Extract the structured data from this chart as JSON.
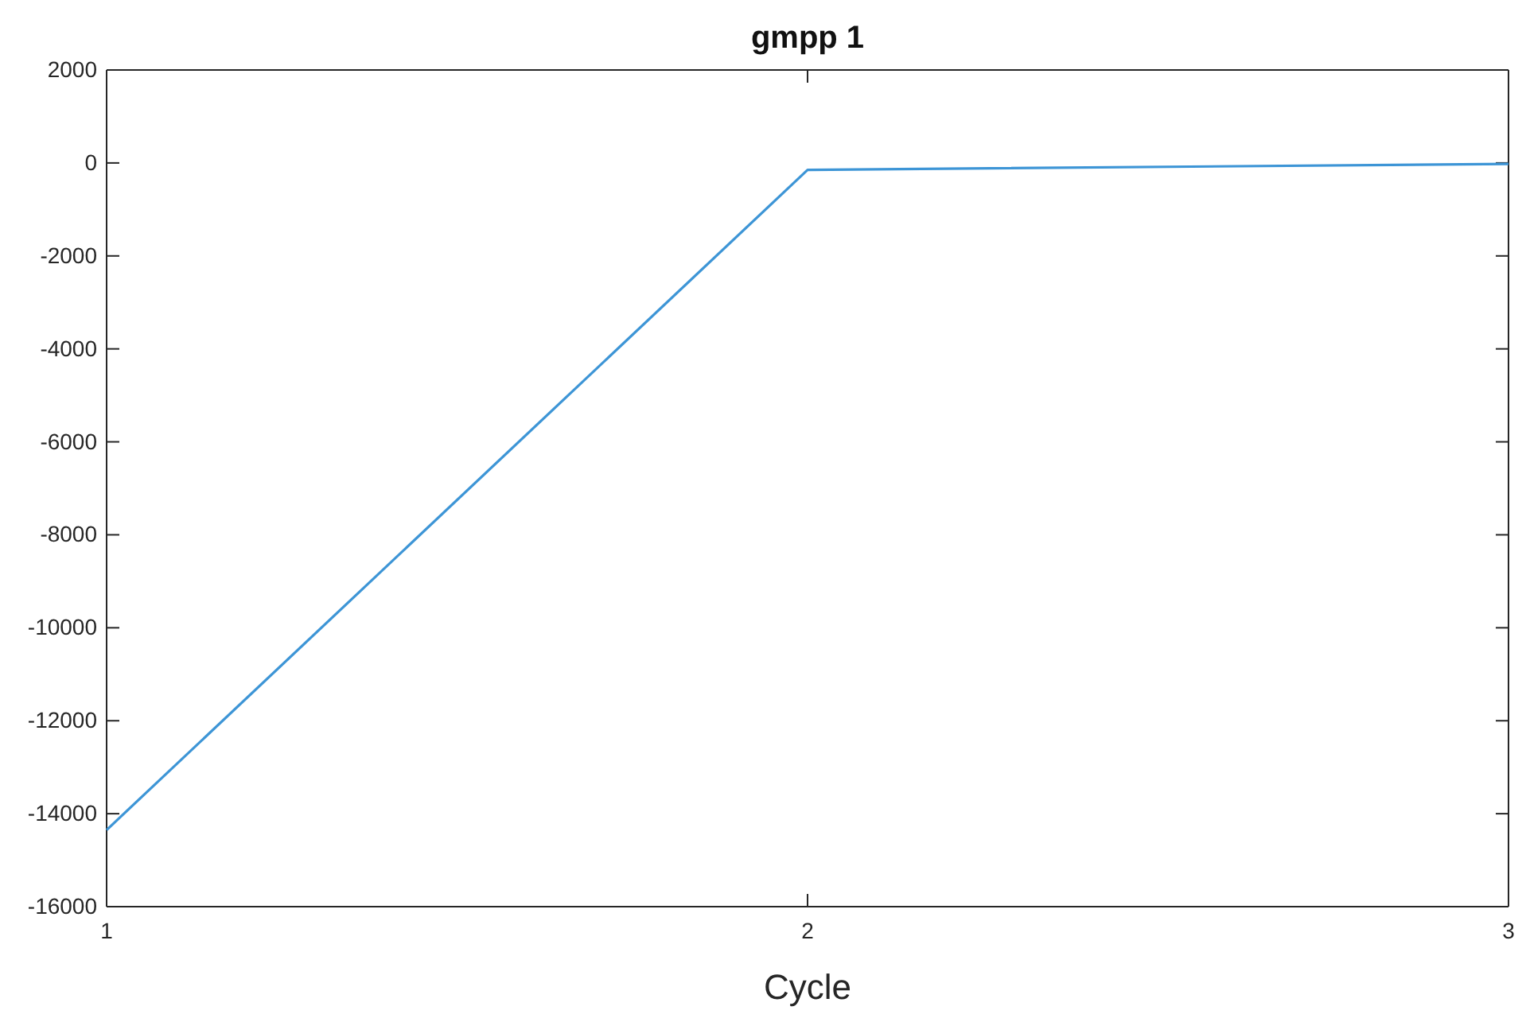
{
  "chart_data": {
    "type": "line",
    "title": "gmpp 1",
    "xlabel": "Cycle",
    "x": [
      1,
      2,
      3
    ],
    "series": [
      {
        "color": "#3d95d6",
        "values": [
          -14350,
          -150,
          -20
        ]
      }
    ],
    "xlim": [
      1,
      3
    ],
    "xticks": [
      1,
      2,
      3
    ],
    "ylim": [
      -16000,
      2000
    ],
    "yticks": [
      -16000,
      -14000,
      -12000,
      -10000,
      -8000,
      -6000,
      -4000,
      -2000,
      0,
      2000
    ],
    "grid": false,
    "marker": "none",
    "line_style": "solid"
  }
}
